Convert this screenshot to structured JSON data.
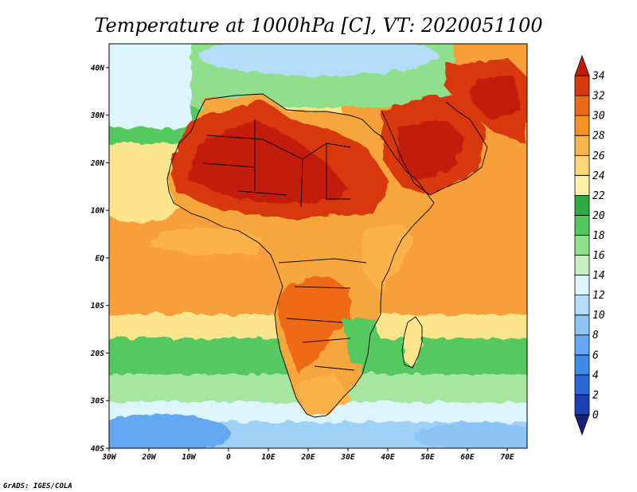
{
  "title": "Temperature at 1000hPa [C], VT: 2020051100",
  "credit": "GrADS: IGES/COLA",
  "map": {
    "region": "Africa and Arabian Peninsula",
    "lon_range": [
      -30,
      75
    ],
    "lat_range": [
      -40,
      45
    ],
    "x_ticks": [
      {
        "value": -30,
        "label": "30W"
      },
      {
        "value": -20,
        "label": "20W"
      },
      {
        "value": -10,
        "label": "10W"
      },
      {
        "value": 0,
        "label": "0"
      },
      {
        "value": 10,
        "label": "10E"
      },
      {
        "value": 20,
        "label": "20E"
      },
      {
        "value": 30,
        "label": "30E"
      },
      {
        "value": 40,
        "label": "40E"
      },
      {
        "value": 50,
        "label": "50E"
      },
      {
        "value": 60,
        "label": "60E"
      },
      {
        "value": 70,
        "label": "70E"
      }
    ],
    "y_ticks": [
      {
        "value": 40,
        "label": "40N"
      },
      {
        "value": 30,
        "label": "30N"
      },
      {
        "value": 20,
        "label": "20N"
      },
      {
        "value": 10,
        "label": "10N"
      },
      {
        "value": 0,
        "label": "EQ"
      },
      {
        "value": -10,
        "label": "10S"
      },
      {
        "value": -20,
        "label": "20S"
      },
      {
        "value": -30,
        "label": "30S"
      },
      {
        "value": -40,
        "label": "40S"
      }
    ]
  },
  "colorbar": {
    "levels": [
      "0",
      "2",
      "4",
      "6",
      "8",
      "10",
      "12",
      "14",
      "16",
      "18",
      "20",
      "22",
      "24",
      "26",
      "28",
      "30",
      "32",
      "34"
    ],
    "colors": [
      "#1a1e7a",
      "#1c3fb5",
      "#2a66d6",
      "#3f8ae6",
      "#63a8f0",
      "#8cc4f5",
      "#b4ddf9",
      "#def4fb",
      "#c9f0c3",
      "#90df8c",
      "#50c85c",
      "#2eaa44",
      "#fff2a8",
      "#fdd67a",
      "#fbb34a",
      "#f69327",
      "#ee6a18",
      "#d8380f",
      "#c21d0c"
    ]
  },
  "chart_data": {
    "type": "heatmap",
    "title": "Temperature at 1000hPa [C], VT: 2020051100",
    "variable": "Temperature at 1000hPa",
    "units": "C",
    "valid_time": "2020051100",
    "x_axis": {
      "range": [
        -30,
        75
      ],
      "units": "degrees longitude"
    },
    "y_axis": {
      "range": [
        -40,
        45
      ],
      "units": "degrees latitude"
    },
    "color_scale": {
      "min": 0,
      "max": 34,
      "step": 2
    },
    "regions": [
      {
        "name": "Sahara / Sahel",
        "approx_temp_c": 34
      },
      {
        "name": "Arabian Peninsula",
        "approx_temp_c": 33
      },
      {
        "name": "Gulf of Guinea ocean",
        "approx_temp_c": 28
      },
      {
        "name": "Indian Ocean tropics",
        "approx_temp_c": 28
      },
      {
        "name": "Southern Africa interior",
        "approx_temp_c": 31
      },
      {
        "name": "Southern Ocean (south of 30S)",
        "approx_temp_c": 14
      },
      {
        "name": "Mediterranean",
        "approx_temp_c": 19
      }
    ]
  }
}
